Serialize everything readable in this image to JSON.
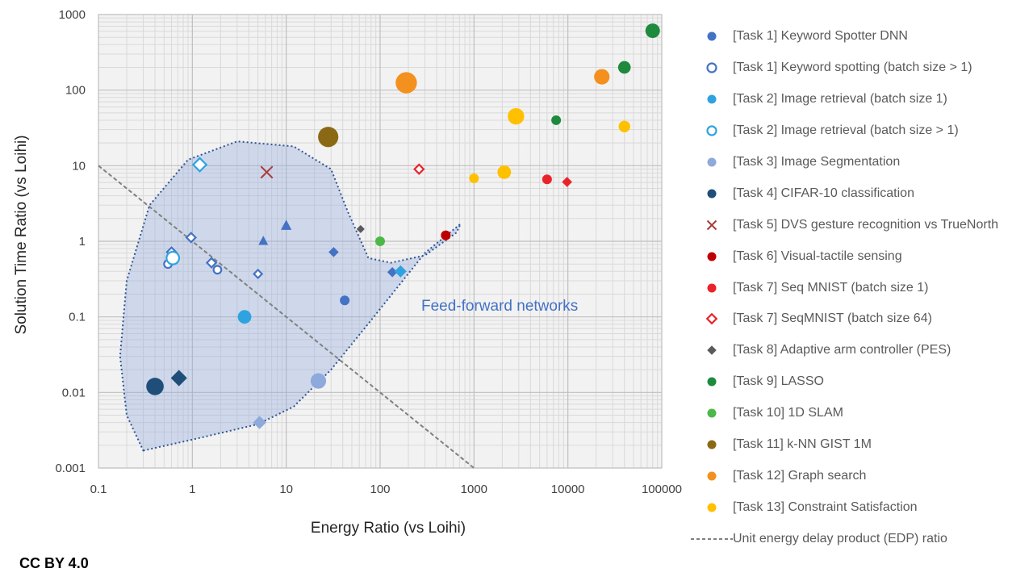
{
  "chart_data": {
    "type": "scatter",
    "xscale": "log",
    "yscale": "log",
    "xlim": [
      0.1,
      100000
    ],
    "ylim": [
      0.001,
      1000
    ],
    "xlabel": "Energy Ratio (vs Loihi)",
    "ylabel": "Solution Time Ratio (vs Loihi)",
    "x_ticks": [
      "0.1",
      "1",
      "10",
      "100",
      "1000",
      "10000",
      "100000"
    ],
    "y_ticks": [
      "0.001",
      "0.01",
      "0.1",
      "1",
      "10",
      "100",
      "1000"
    ],
    "grid": true,
    "annotation": "Feed-forward networks",
    "reference_line": {
      "name": "Unit energy delay product (EDP) ratio",
      "x": [
        0.1,
        1000
      ],
      "y": [
        10,
        0.001
      ]
    },
    "series": [
      {
        "name": "[Task 1] Keyword Spotter DNN",
        "color": "#4472C4",
        "fill": true,
        "points": [
          {
            "x": 5.7,
            "y": 1.0,
            "marker": "triangle",
            "size": 1
          },
          {
            "x": 10,
            "y": 1.6,
            "marker": "triangle",
            "size": 1.1
          },
          {
            "x": 32,
            "y": 0.72,
            "marker": "diamond",
            "size": 1
          },
          {
            "x": 42,
            "y": 0.165,
            "marker": "circle",
            "size": 1
          },
          {
            "x": 135,
            "y": 0.39,
            "marker": "diamond",
            "size": 1
          }
        ]
      },
      {
        "name": "[Task 1] Keyword spotting (batch size > 1)",
        "color": "#4472C4",
        "fill": false,
        "points": [
          {
            "x": 0.55,
            "y": 0.5,
            "marker": "circle",
            "size": 0.8
          },
          {
            "x": 0.6,
            "y": 0.72,
            "marker": "diamond",
            "size": 0.9
          },
          {
            "x": 0.97,
            "y": 1.12,
            "marker": "diamond",
            "size": 0.9
          },
          {
            "x": 1.6,
            "y": 0.52,
            "marker": "diamond",
            "size": 0.9
          },
          {
            "x": 1.85,
            "y": 0.42,
            "marker": "circle",
            "size": 0.8
          },
          {
            "x": 5.0,
            "y": 0.37,
            "marker": "diamond",
            "size": 0.8
          }
        ]
      },
      {
        "name": "[Task 2] Image retrieval (batch size 1)",
        "color": "#2EA3E0",
        "fill": true,
        "points": [
          {
            "x": 3.6,
            "y": 0.1,
            "marker": "circle",
            "size": 1.4
          },
          {
            "x": 165,
            "y": 0.4,
            "marker": "diamond",
            "size": 1.2
          }
        ]
      },
      {
        "name": "[Task 2] Image retrieval (batch size > 1)",
        "color": "#2EA3E0",
        "fill": false,
        "points": [
          {
            "x": 0.62,
            "y": 0.6,
            "marker": "circle",
            "size": 1.3
          },
          {
            "x": 1.2,
            "y": 10.3,
            "marker": "diamond",
            "size": 1.3
          }
        ]
      },
      {
        "name": "[Task 3] Image Segmentation",
        "color": "#8EA9DB",
        "fill": true,
        "points": [
          {
            "x": 5.2,
            "y": 0.004,
            "marker": "diamond",
            "size": 1.3
          },
          {
            "x": 22,
            "y": 0.0142,
            "marker": "circle",
            "size": 1.6
          }
        ]
      },
      {
        "name": "[Task 4] CIFAR-10 classification",
        "color": "#1F4E79",
        "fill": true,
        "points": [
          {
            "x": 0.4,
            "y": 0.012,
            "marker": "circle",
            "size": 1.8
          },
          {
            "x": 0.72,
            "y": 0.0155,
            "marker": "diamond",
            "size": 1.6
          }
        ]
      },
      {
        "name": "[Task 5] DVS gesture recognition vs TrueNorth",
        "color": "#A93C3C",
        "fill": true,
        "points": [
          {
            "x": 6.2,
            "y": 8.2,
            "marker": "x",
            "size": 1.2
          }
        ]
      },
      {
        "name": "[Task 6] Visual-tactile sensing",
        "color": "#C00000",
        "fill": true,
        "points": [
          {
            "x": 500,
            "y": 1.2,
            "marker": "circle",
            "size": 1
          }
        ]
      },
      {
        "name": "[Task 7] Seq MNIST (batch size 1)",
        "color": "#E8242A",
        "fill": true,
        "points": [
          {
            "x": 6000,
            "y": 6.6,
            "marker": "circle",
            "size": 1
          },
          {
            "x": 9800,
            "y": 6.1,
            "marker": "diamond",
            "size": 1
          }
        ]
      },
      {
        "name": "[Task 7] SeqMNIST (batch size 64)",
        "color": "#E8242A",
        "fill": false,
        "points": [
          {
            "x": 260,
            "y": 9.0,
            "marker": "diamond",
            "size": 0.9
          }
        ]
      },
      {
        "name": "[Task 8] Adaptive arm controller (PES)",
        "color": "#5A5A5A",
        "fill": true,
        "points": [
          {
            "x": 62,
            "y": 1.45,
            "marker": "diamond",
            "size": 0.8
          }
        ]
      },
      {
        "name": "[Task 9] LASSO",
        "color": "#1E8A3E",
        "fill": true,
        "points": [
          {
            "x": 7500,
            "y": 40,
            "marker": "circle",
            "size": 1
          },
          {
            "x": 40000,
            "y": 200,
            "marker": "circle",
            "size": 1.3
          },
          {
            "x": 80000,
            "y": 610,
            "marker": "circle",
            "size": 1.5
          }
        ]
      },
      {
        "name": "[Task 10] 1D SLAM",
        "color": "#4DB848",
        "fill": true,
        "points": [
          {
            "x": 100,
            "y": 1.0,
            "marker": "circle",
            "size": 1
          }
        ]
      },
      {
        "name": "[Task 11] k-NN GIST 1M",
        "color": "#8B6914",
        "fill": true,
        "points": [
          {
            "x": 28,
            "y": 24,
            "marker": "circle",
            "size": 2.1
          }
        ]
      },
      {
        "name": "[Task 12] Graph search",
        "color": "#F4901E",
        "fill": true,
        "points": [
          {
            "x": 190,
            "y": 125,
            "marker": "circle",
            "size": 2.2
          },
          {
            "x": 23000,
            "y": 150,
            "marker": "circle",
            "size": 1.6
          }
        ]
      },
      {
        "name": "[Task 13] Constraint Satisfaction",
        "color": "#FFC000",
        "fill": true,
        "points": [
          {
            "x": 1000,
            "y": 6.8,
            "marker": "circle",
            "size": 1
          },
          {
            "x": 2100,
            "y": 8.2,
            "marker": "circle",
            "size": 1.4
          },
          {
            "x": 2800,
            "y": 45,
            "marker": "circle",
            "size": 1.7
          },
          {
            "x": 40000,
            "y": 33,
            "marker": "circle",
            "size": 1.2
          }
        ]
      }
    ]
  },
  "footer": {
    "license": "CC BY 4.0"
  }
}
